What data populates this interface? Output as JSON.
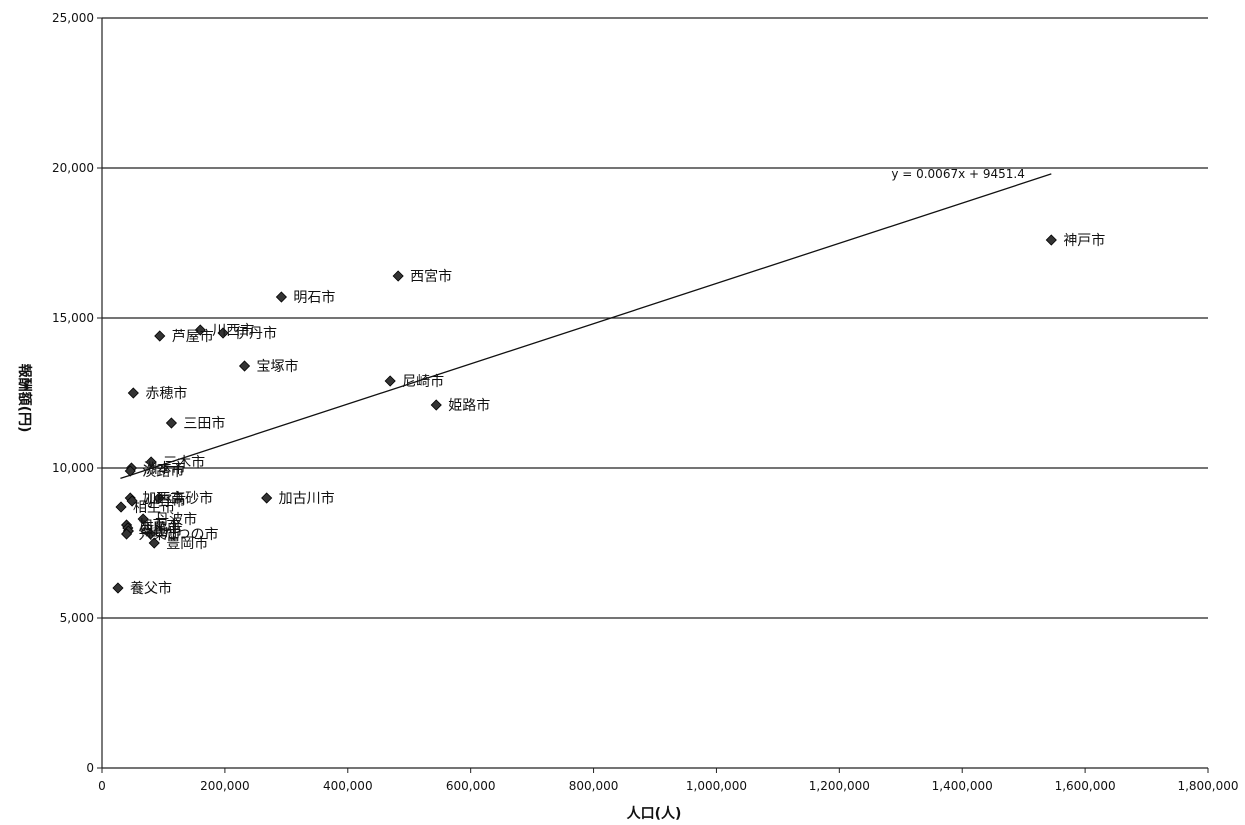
{
  "chart_data": {
    "type": "scatter",
    "xlabel": "人口(人)",
    "ylabel": "報酬額(円)",
    "xlim": [
      0,
      1800000
    ],
    "ylim": [
      0,
      25000
    ],
    "xticks": [
      "0",
      "200,000",
      "400,000",
      "600,000",
      "800,000",
      "1,000,000",
      "1,200,000",
      "1,400,000",
      "1,600,000",
      "1,800,000"
    ],
    "yticks": [
      "0",
      "5,000",
      "10,000",
      "15,000",
      "20,000",
      "25,000"
    ],
    "grid": "horizontal",
    "legend": "none",
    "points": [
      {
        "label": "神戸市",
        "x": 1545000,
        "y": 17600
      },
      {
        "label": "西宮市",
        "x": 482000,
        "y": 16400
      },
      {
        "label": "明石市",
        "x": 292000,
        "y": 15700
      },
      {
        "label": "川西市",
        "x": 160000,
        "y": 14600
      },
      {
        "label": "伊丹市",
        "x": 197000,
        "y": 14500
      },
      {
        "label": "芦屋市",
        "x": 94000,
        "y": 14400
      },
      {
        "label": "宝塚市",
        "x": 232000,
        "y": 13400
      },
      {
        "label": "尼崎市",
        "x": 469000,
        "y": 12900
      },
      {
        "label": "赤穂市",
        "x": 51000,
        "y": 12500
      },
      {
        "label": "姫路市",
        "x": 544000,
        "y": 12100
      },
      {
        "label": "三田市",
        "x": 113000,
        "y": 11500
      },
      {
        "label": "三木市",
        "x": 80000,
        "y": 10200
      },
      {
        "label": "洲本市",
        "x": 48000,
        "y": 10000
      },
      {
        "label": "淡路市",
        "x": 46000,
        "y": 9900
      },
      {
        "label": "加古川市",
        "x": 268000,
        "y": 9000
      },
      {
        "label": "加西市",
        "x": 46000,
        "y": 9000
      },
      {
        "label": "高砂市",
        "x": 93000,
        "y": 9000
      },
      {
        "label": "小野市",
        "x": 49000,
        "y": 8900
      },
      {
        "label": "相生市",
        "x": 31000,
        "y": 8700
      },
      {
        "label": "丹波市",
        "x": 67000,
        "y": 8300
      },
      {
        "label": "加東市",
        "x": 40000,
        "y": 8100
      },
      {
        "label": "西脇市",
        "x": 42000,
        "y": 8000
      },
      {
        "label": "篠山市",
        "x": 43000,
        "y": 7900
      },
      {
        "label": "宍粟市",
        "x": 40000,
        "y": 7800
      },
      {
        "label": "たつの市",
        "x": 79000,
        "y": 7800
      },
      {
        "label": "豊岡市",
        "x": 85000,
        "y": 7500
      },
      {
        "label": "養父市",
        "x": 26000,
        "y": 6000
      }
    ],
    "trendline": {
      "equation": "y = 0.0067x + 9451.4",
      "slope": 0.0067,
      "intercept": 9451.4,
      "x_range": [
        30000,
        1545000
      ]
    }
  }
}
